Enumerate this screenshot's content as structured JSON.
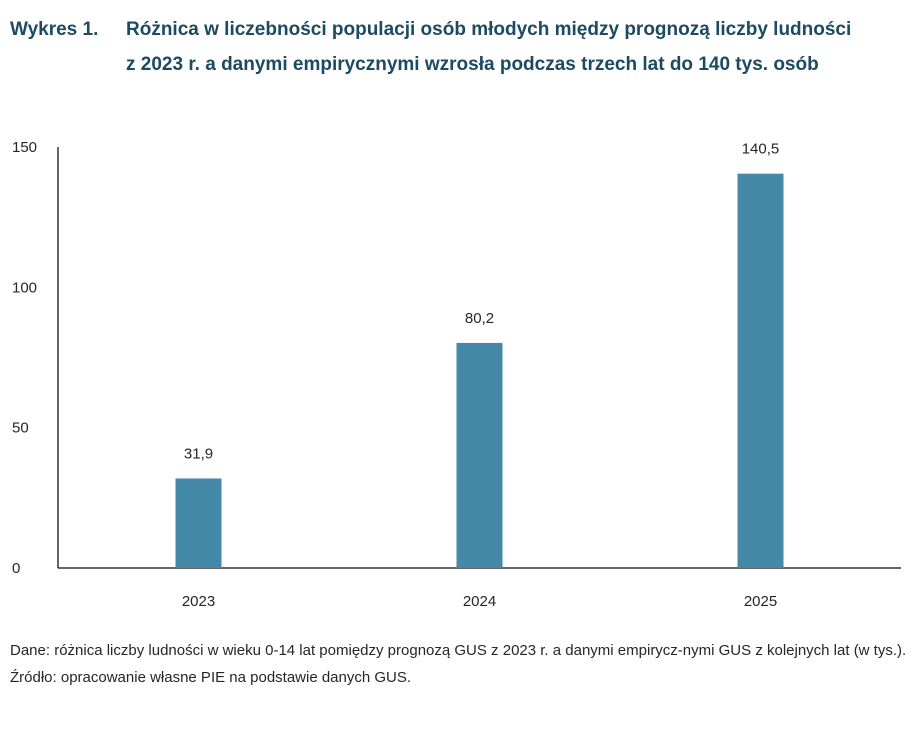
{
  "header": {
    "prefix": "Wykres 1.",
    "title": "Różnica w liczebności populacji osób młodych między prognozą liczby ludności z 2023 r. a danymi empirycznymi wzrosła podczas trzech lat do 140 tys. osób"
  },
  "chart_data": {
    "type": "bar",
    "categories": [
      "2023",
      "2024",
      "2025"
    ],
    "values": [
      31.9,
      80.2,
      140.5
    ],
    "data_labels": [
      "31,9",
      "80,2",
      "140,5"
    ],
    "yticks": [
      0,
      50,
      100,
      150
    ],
    "ylim": [
      0,
      150
    ],
    "grid": false,
    "legend": "none",
    "bar_color": "#4589a8",
    "axis_color": "#333333"
  },
  "notes": {
    "data": "Dane: różnica liczby ludności w wieku 0-14 lat pomiędzy prognozą GUS z 2023 r. a danymi empirycz-nymi GUS z kolejnych lat (w tys.).",
    "source": "Źródło: opracowanie własne PIE na podstawie danych GUS."
  }
}
